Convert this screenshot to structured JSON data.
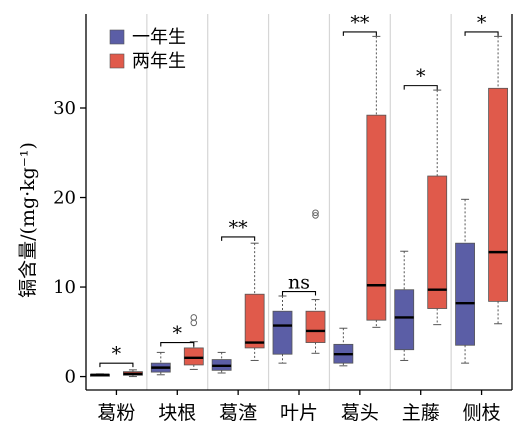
{
  "chart_data": {
    "type": "box",
    "ylabel": "镉含量/(mg·kg⁻¹)",
    "ylim": [
      -1.5,
      40.5
    ],
    "yticks": [
      0,
      10,
      20,
      30
    ],
    "grid": "vertical separators between categories",
    "legend": {
      "placement": "top-left",
      "entries": [
        {
          "name": "一年生",
          "color": "#5b5ea6"
        },
        {
          "name": "两年生",
          "color": "#e05a4b"
        }
      ]
    },
    "categories": [
      "葛粉",
      "块根",
      "葛渣",
      "叶片",
      "葛头",
      "主藤",
      "侧枝"
    ],
    "series": [
      {
        "name": "一年生",
        "color": "#5b5ea6",
        "boxes": [
          {
            "min": 0.1,
            "q1": 0.15,
            "median": 0.2,
            "q3": 0.25,
            "max": 0.3,
            "outliers": []
          },
          {
            "min": 0.2,
            "q1": 0.5,
            "median": 1.0,
            "q3": 1.5,
            "max": 2.7,
            "outliers": []
          },
          {
            "min": 0.4,
            "q1": 0.7,
            "median": 1.2,
            "q3": 1.9,
            "max": 2.7,
            "outliers": []
          },
          {
            "min": 1.5,
            "q1": 2.5,
            "median": 5.7,
            "q3": 7.3,
            "max": 9.0,
            "outliers": []
          },
          {
            "min": 1.2,
            "q1": 1.5,
            "median": 2.5,
            "q3": 3.6,
            "max": 5.4,
            "outliers": []
          },
          {
            "min": 1.8,
            "q1": 3.0,
            "median": 6.6,
            "q3": 9.7,
            "max": 14.0,
            "outliers": []
          },
          {
            "min": 1.5,
            "q1": 3.5,
            "median": 8.2,
            "q3": 14.9,
            "max": 19.8,
            "outliers": []
          }
        ]
      },
      {
        "name": "两年生",
        "color": "#e05a4b",
        "boxes": [
          {
            "min": 0.0,
            "q1": 0.15,
            "median": 0.3,
            "q3": 0.55,
            "max": 0.75,
            "outliers": []
          },
          {
            "min": 0.8,
            "q1": 1.3,
            "median": 2.1,
            "q3": 3.2,
            "max": 3.9,
            "outliers": [
              6.0,
              6.6
            ]
          },
          {
            "min": 1.8,
            "q1": 3.2,
            "median": 3.8,
            "q3": 9.2,
            "max": 14.9,
            "outliers": []
          },
          {
            "min": 2.6,
            "q1": 3.8,
            "median": 5.1,
            "q3": 7.3,
            "max": 8.6,
            "outliers": [
              18.0,
              18.3
            ]
          },
          {
            "min": 5.5,
            "q1": 6.3,
            "median": 10.2,
            "q3": 29.2,
            "max": 38.0,
            "outliers": []
          },
          {
            "min": 5.8,
            "q1": 7.6,
            "median": 9.7,
            "q3": 22.4,
            "max": 32.0,
            "outliers": []
          },
          {
            "min": 5.9,
            "q1": 8.4,
            "median": 13.9,
            "q3": 32.2,
            "max": 38.0,
            "outliers": []
          }
        ]
      }
    ],
    "significance": [
      {
        "category": "葛粉",
        "label": "*",
        "y": 1.5
      },
      {
        "category": "块根",
        "label": "*",
        "y": 3.8
      },
      {
        "category": "葛渣",
        "label": "**",
        "y": 15.6
      },
      {
        "category": "叶片",
        "label": "ns",
        "y": 9.5
      },
      {
        "category": "葛头",
        "label": "**",
        "y": 38.5
      },
      {
        "category": "主藤",
        "label": "*",
        "y": 32.5
      },
      {
        "category": "侧枝",
        "label": "*",
        "y": 38.5
      }
    ]
  }
}
